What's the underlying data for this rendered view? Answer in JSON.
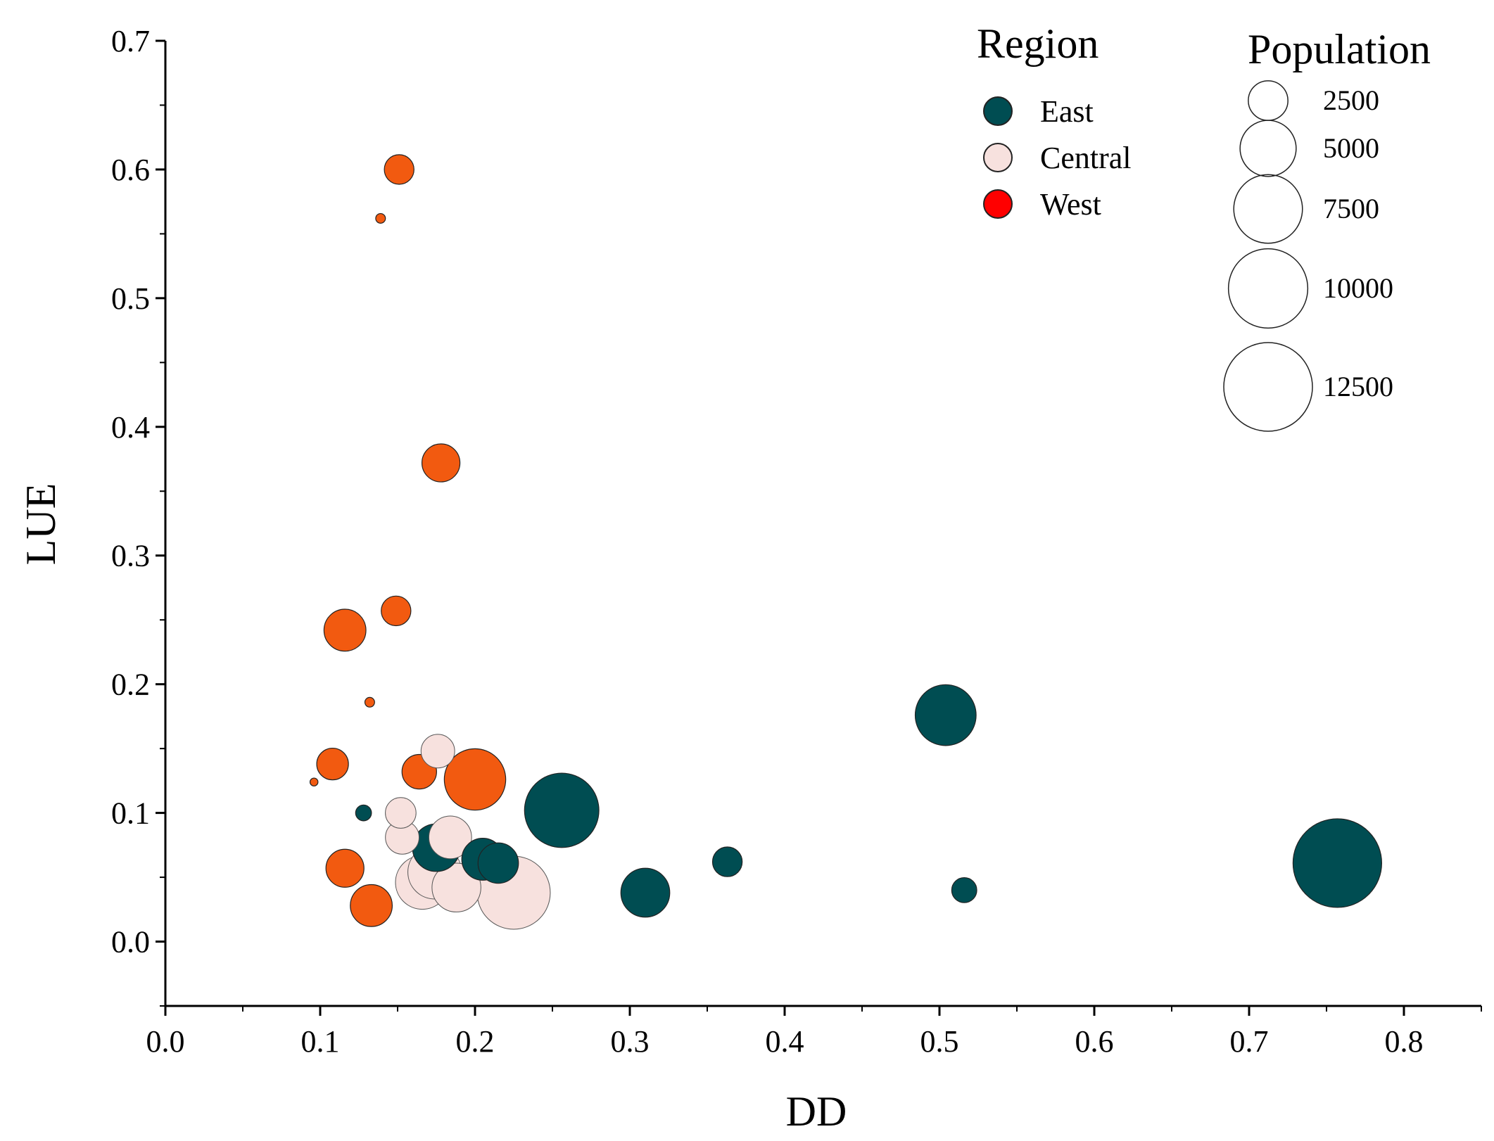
{
  "chart_data": {
    "type": "scatter",
    "subtype": "bubble",
    "xlabel": "DD",
    "ylabel": "LUE",
    "xlim": [
      0.0,
      0.85
    ],
    "ylim": [
      -0.05,
      0.7
    ],
    "x_ticks": [
      "0.0",
      "0.1",
      "0.2",
      "0.3",
      "0.4",
      "0.5",
      "0.6",
      "0.7",
      "0.8"
    ],
    "y_ticks": [
      "0.0",
      "0.1",
      "0.2",
      "0.3",
      "0.4",
      "0.5",
      "0.6",
      "0.7"
    ],
    "x_tick_values": [
      0.0,
      0.1,
      0.2,
      0.3,
      0.4,
      0.5,
      0.6,
      0.7,
      0.8
    ],
    "y_tick_values": [
      0.0,
      0.1,
      0.2,
      0.3,
      0.4,
      0.5,
      0.6,
      0.7
    ],
    "legend_region": {
      "title": "Region",
      "entries": [
        {
          "name": "East",
          "color": "#004d52"
        },
        {
          "name": "Central",
          "color": "#f7e1de"
        },
        {
          "name": "West",
          "color": "#ff0000"
        }
      ]
    },
    "legend_population": {
      "title": "Population",
      "entries": [
        {
          "label": "2500",
          "value": 2500
        },
        {
          "label": "5000",
          "value": 5000
        },
        {
          "label": "7500",
          "value": 7500
        },
        {
          "label": "10000",
          "value": 10000
        },
        {
          "label": "12500",
          "value": 12500
        }
      ]
    },
    "series": [
      {
        "name": "East",
        "color": "#004d52",
        "points": [
          {
            "x": 0.757,
            "y": 0.061,
            "population": 12500
          },
          {
            "x": 0.504,
            "y": 0.176,
            "population": 5900
          },
          {
            "x": 0.256,
            "y": 0.102,
            "population": 8800
          },
          {
            "x": 0.31,
            "y": 0.038,
            "population": 3800
          },
          {
            "x": 0.363,
            "y": 0.062,
            "population": 1400
          },
          {
            "x": 0.516,
            "y": 0.04,
            "population": 1000
          },
          {
            "x": 0.128,
            "y": 0.1,
            "population": 400
          },
          {
            "x": 0.175,
            "y": 0.073,
            "population": 3600
          },
          {
            "x": 0.205,
            "y": 0.064,
            "population": 2800
          },
          {
            "x": 0.215,
            "y": 0.061,
            "population": 2600
          }
        ]
      },
      {
        "name": "Central",
        "color": "#f7e1de",
        "points": [
          {
            "x": 0.225,
            "y": 0.038,
            "population": 8500
          },
          {
            "x": 0.166,
            "y": 0.046,
            "population": 4600
          },
          {
            "x": 0.188,
            "y": 0.042,
            "population": 3800
          },
          {
            "x": 0.174,
            "y": 0.054,
            "population": 4600
          },
          {
            "x": 0.184,
            "y": 0.081,
            "population": 2900
          },
          {
            "x": 0.153,
            "y": 0.081,
            "population": 1800
          },
          {
            "x": 0.152,
            "y": 0.1,
            "population": 1500
          },
          {
            "x": 0.176,
            "y": 0.148,
            "population": 1800
          }
        ]
      },
      {
        "name": "West",
        "color": "#ff0000",
        "points": [
          {
            "x": 0.2,
            "y": 0.126,
            "population": 6000
          },
          {
            "x": 0.133,
            "y": 0.028,
            "population": 2800
          },
          {
            "x": 0.116,
            "y": 0.057,
            "population": 2300
          },
          {
            "x": 0.108,
            "y": 0.138,
            "population": 1600
          },
          {
            "x": 0.164,
            "y": 0.132,
            "population": 1900
          },
          {
            "x": 0.116,
            "y": 0.242,
            "population": 2800
          },
          {
            "x": 0.149,
            "y": 0.257,
            "population": 1400
          },
          {
            "x": 0.178,
            "y": 0.372,
            "population": 2300
          },
          {
            "x": 0.151,
            "y": 0.6,
            "population": 1400
          },
          {
            "x": 0.139,
            "y": 0.562,
            "population": 150
          },
          {
            "x": 0.132,
            "y": 0.186,
            "population": 150
          },
          {
            "x": 0.096,
            "y": 0.124,
            "population": 100
          }
        ]
      }
    ]
  }
}
